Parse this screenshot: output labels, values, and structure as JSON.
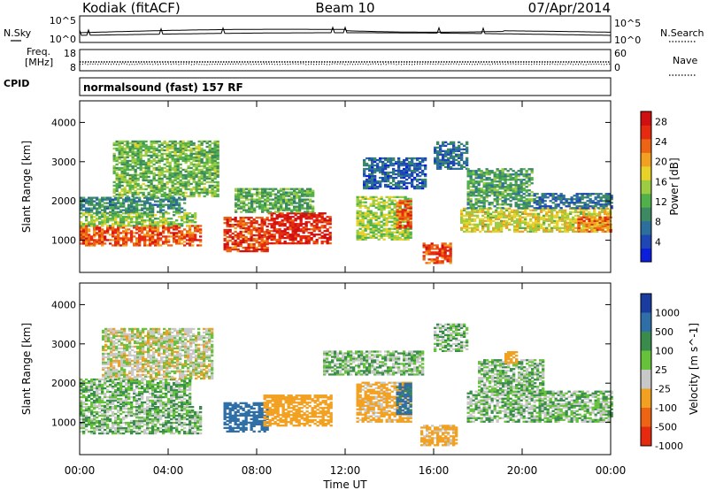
{
  "header": {
    "station": "Kodiak (fitACF)",
    "beam": "Beam 10",
    "date": "07/Apr/2014"
  },
  "top_panels": {
    "nsky_label": "N.Sky",
    "nsearch_label": "N.Search",
    "noise_ticks_left": [
      "10^5",
      "10^0"
    ],
    "noise_ticks_right": [
      "10^5",
      "10^0"
    ],
    "freq_label_lines": [
      "Freq.",
      "[MHz]"
    ],
    "freq_ticks": [
      "18",
      "8"
    ],
    "nave_label": "Nave",
    "nave_ticks": [
      "60",
      "0"
    ],
    "cpid_label": "CPID",
    "cpid_value": "normalsound (fast) 157 RF"
  },
  "chart_data": [
    {
      "type": "heatmap",
      "title": "",
      "xlabel": "Time UT",
      "ylabel": "Slant Range [km]",
      "x_ticks": [
        "00:00",
        "04:00",
        "08:00",
        "12:00",
        "16:00",
        "20:00",
        "00:00"
      ],
      "xlim_hours": [
        0,
        24
      ],
      "y_ticks": [
        "1000",
        "2000",
        "3000",
        "4000"
      ],
      "ylim_km": [
        180,
        4550
      ],
      "colorbar": {
        "label": "Power [dB]",
        "ticks": [
          "4",
          "8",
          "12",
          "16",
          "20",
          "24",
          "28"
        ],
        "range": [
          0,
          30
        ],
        "colors": [
          "#0a1edc",
          "#1e46b4",
          "#2c6f9c",
          "#3d8a62",
          "#52b04a",
          "#9ccc42",
          "#e6d228",
          "#f2a020",
          "#ec6414",
          "#e62a10",
          "#d01010"
        ]
      },
      "regions": [
        {
          "t0": 0.0,
          "t1": 5.5,
          "r0": 850,
          "r1": 1350,
          "value": 24
        },
        {
          "t0": 0.0,
          "t1": 5.2,
          "r0": 1350,
          "r1": 1700,
          "value": 14
        },
        {
          "t0": 0.0,
          "t1": 4.8,
          "r0": 1700,
          "r1": 2100,
          "value": 9
        },
        {
          "t0": 1.5,
          "t1": 6.2,
          "r0": 2100,
          "r1": 3500,
          "value": 13
        },
        {
          "t0": 6.5,
          "t1": 8.5,
          "r0": 700,
          "r1": 1600,
          "value": 25
        },
        {
          "t0": 8.5,
          "t1": 11.3,
          "r0": 900,
          "r1": 1700,
          "value": 27
        },
        {
          "t0": 7.0,
          "t1": 10.5,
          "r0": 1700,
          "r1": 2300,
          "value": 12
        },
        {
          "t0": 12.5,
          "t1": 15.0,
          "r0": 1000,
          "r1": 2100,
          "value": 15
        },
        {
          "t0": 14.3,
          "t1": 14.9,
          "r0": 1300,
          "r1": 2000,
          "value": 24
        },
        {
          "t0": 12.8,
          "t1": 15.6,
          "r0": 2300,
          "r1": 3100,
          "value": 6
        },
        {
          "t0": 15.5,
          "t1": 16.8,
          "r0": 400,
          "r1": 900,
          "value": 25
        },
        {
          "t0": 16.0,
          "t1": 17.5,
          "r0": 2800,
          "r1": 3500,
          "value": 7
        },
        {
          "t0": 17.2,
          "t1": 24.0,
          "r0": 1200,
          "r1": 1800,
          "value": 17
        },
        {
          "t0": 17.5,
          "t1": 20.5,
          "r0": 1800,
          "r1": 2800,
          "value": 11
        },
        {
          "t0": 20.5,
          "t1": 24.0,
          "r0": 1800,
          "r1": 2200,
          "value": 7
        },
        {
          "t0": 22.5,
          "t1": 24.0,
          "r0": 1200,
          "r1": 1600,
          "value": 22
        }
      ]
    },
    {
      "type": "heatmap",
      "title": "",
      "xlabel": "Time UT",
      "ylabel": "Slant Range [km]",
      "x_ticks": [
        "00:00",
        "04:00",
        "08:00",
        "12:00",
        "16:00",
        "20:00",
        "00:00"
      ],
      "xlim_hours": [
        0,
        24
      ],
      "y_ticks": [
        "1000",
        "2000",
        "3000",
        "4000"
      ],
      "ylim_km": [
        180,
        4550
      ],
      "colorbar": {
        "label": "Velocity [m s^-1]",
        "ticks": [
          "1000",
          "500",
          "100",
          "25",
          "-25",
          "-100",
          "-500",
          "-1000"
        ],
        "colors": [
          "#1a3ca0",
          "#2f6fa8",
          "#3a8c4c",
          "#66c23a",
          "#c8c8c8",
          "#f2a020",
          "#ec6414",
          "#e62a10"
        ]
      },
      "regions": [
        {
          "t0": 0.0,
          "t1": 5.5,
          "r0": 700,
          "r1": 1400,
          "value": 0
        },
        {
          "t0": 0.0,
          "t1": 5.0,
          "r0": 1400,
          "r1": 2100,
          "value": 10
        },
        {
          "t0": 1.0,
          "t1": 6.0,
          "r0": 2100,
          "r1": 3400,
          "value": -60
        },
        {
          "t0": 6.5,
          "t1": 8.5,
          "r0": 750,
          "r1": 1500,
          "value": 200
        },
        {
          "t0": 8.3,
          "t1": 11.3,
          "r0": 900,
          "r1": 1700,
          "value": -200
        },
        {
          "t0": 12.5,
          "t1": 14.9,
          "r0": 1000,
          "r1": 2000,
          "value": -150
        },
        {
          "t0": 14.3,
          "t1": 14.9,
          "r0": 1200,
          "r1": 2000,
          "value": 150
        },
        {
          "t0": 11.0,
          "t1": 15.5,
          "r0": 2200,
          "r1": 2800,
          "value": 0
        },
        {
          "t0": 15.4,
          "t1": 17.0,
          "r0": 400,
          "r1": 900,
          "value": -150
        },
        {
          "t0": 16.0,
          "t1": 17.5,
          "r0": 2800,
          "r1": 3500,
          "value": 0
        },
        {
          "t0": 17.5,
          "t1": 24.0,
          "r0": 1000,
          "r1": 1800,
          "value": 0
        },
        {
          "t0": 18.0,
          "t1": 21.0,
          "r0": 1800,
          "r1": 2600,
          "value": 0
        },
        {
          "t0": 19.2,
          "t1": 19.8,
          "r0": 2500,
          "r1": 2800,
          "value": -300
        }
      ]
    }
  ]
}
